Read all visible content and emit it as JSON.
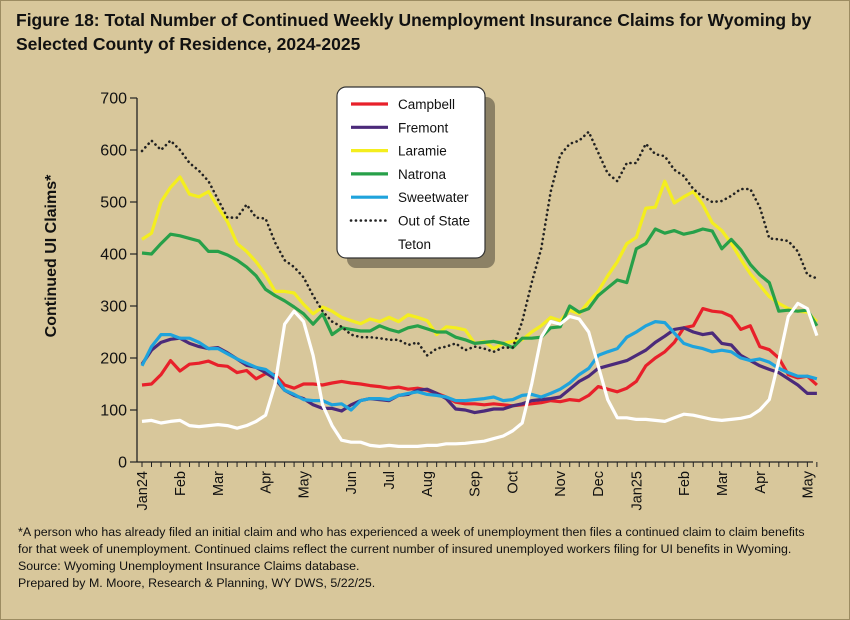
{
  "title": "Figure 18: Total Number of Continued Weekly Unemployment Insurance Claims for Wyoming by Selected County of Residence, 2024-2025",
  "footnotes": {
    "line1": "*A person who has already filed an initial claim and who has experienced a week of unemployment then files a continued claim to claim benefits",
    "line2": "for that week of unemployment. Continued claims reflect the current number of insured unemployed workers filing for UI benefits in Wyoming.",
    "source": "Source: Wyoming Unemployment Insurance Claims database.",
    "prepared": "Prepared by M. Moore, Research & Planning, WY DWS, 5/22/25."
  },
  "chart_data": {
    "type": "line",
    "title": "Figure 18: Total Number of Continued Weekly Unemployment Insurance Claims for Wyoming by Selected County of Residence, 2024-2025",
    "ylabel": "Continued UI Claims*",
    "xlabel": "",
    "ylim": [
      0,
      700
    ],
    "yticks": [
      0,
      100,
      200,
      300,
      400,
      500,
      600,
      700
    ],
    "grid": false,
    "legend_position": "top-center",
    "x_tick_labels": [
      "Jan24",
      "Feb",
      "Mar",
      "Apr",
      "May",
      "Jun",
      "Jul",
      "Aug",
      "Sep",
      "Oct",
      "Nov",
      "Dec",
      "Jan25",
      "Feb",
      "Mar",
      "Apr",
      "May"
    ],
    "x_tick_weeks": [
      0,
      4,
      8,
      13,
      17,
      22,
      26,
      30,
      35,
      39,
      44,
      48,
      52,
      57,
      61,
      65,
      70
    ],
    "x_unit": "week",
    "series": [
      {
        "name": "Campbell",
        "color": "#e8202a",
        "dash": "solid",
        "values": [
          148,
          150,
          168,
          195,
          175,
          188,
          190,
          194,
          186,
          184,
          172,
          176,
          160,
          170,
          168,
          148,
          142,
          150,
          150,
          148,
          152,
          155,
          152,
          150,
          147,
          145,
          142,
          144,
          140,
          142,
          138,
          132,
          125,
          115,
          112,
          112,
          110,
          112,
          110,
          108,
          110,
          112,
          114,
          118,
          116,
          120,
          118,
          128,
          145,
          140,
          135,
          142,
          155,
          185,
          200,
          212,
          230,
          258,
          262,
          295,
          290,
          288,
          280,
          255,
          262,
          222,
          216,
          200,
          168,
          162,
          165,
          148
        ]
      },
      {
        "name": "Fremont",
        "color": "#4b2a7a",
        "dash": "solid",
        "values": [
          188,
          215,
          230,
          236,
          238,
          228,
          222,
          218,
          220,
          210,
          198,
          186,
          182,
          172,
          160,
          138,
          128,
          122,
          110,
          103,
          103,
          98,
          110,
          118,
          122,
          120,
          118,
          128,
          130,
          138,
          140,
          132,
          122,
          102,
          100,
          95,
          98,
          102,
          102,
          108,
          112,
          118,
          120,
          122,
          125,
          140,
          155,
          165,
          180,
          185,
          190,
          195,
          205,
          215,
          230,
          242,
          255,
          258,
          250,
          245,
          248,
          228,
          225,
          205,
          195,
          185,
          178,
          172,
          160,
          148,
          132,
          132
        ]
      },
      {
        "name": "Laramie",
        "color": "#f4ee1e",
        "dash": "solid",
        "values": [
          428,
          440,
          500,
          528,
          548,
          515,
          510,
          520,
          490,
          462,
          420,
          405,
          385,
          360,
          328,
          328,
          325,
          303,
          285,
          298,
          290,
          278,
          272,
          266,
          275,
          270,
          278,
          270,
          283,
          278,
          272,
          245,
          260,
          258,
          254,
          228,
          232,
          218,
          228,
          232,
          235,
          250,
          262,
          278,
          272,
          292,
          285,
          308,
          328,
          358,
          385,
          420,
          432,
          488,
          490,
          540,
          498,
          510,
          520,
          495,
          460,
          445,
          420,
          390,
          362,
          340,
          318,
          305,
          295,
          290,
          288,
          270
        ]
      },
      {
        "name": "Natrona",
        "color": "#27a049",
        "dash": "solid",
        "values": [
          402,
          400,
          420,
          438,
          435,
          430,
          425,
          405,
          405,
          398,
          388,
          375,
          358,
          332,
          320,
          310,
          298,
          285,
          265,
          285,
          245,
          258,
          255,
          252,
          252,
          262,
          255,
          250,
          258,
          262,
          256,
          250,
          250,
          240,
          235,
          228,
          230,
          232,
          228,
          220,
          238,
          238,
          240,
          258,
          260,
          300,
          288,
          295,
          320,
          335,
          350,
          345,
          410,
          420,
          448,
          440,
          445,
          438,
          442,
          448,
          444,
          410,
          428,
          408,
          380,
          360,
          345,
          290,
          292,
          290,
          292,
          262
        ]
      },
      {
        "name": "Sweetwater",
        "color": "#1fa3dc",
        "dash": "solid",
        "values": [
          185,
          222,
          245,
          245,
          238,
          238,
          230,
          218,
          218,
          208,
          198,
          190,
          182,
          178,
          165,
          138,
          130,
          120,
          118,
          118,
          110,
          112,
          100,
          118,
          122,
          122,
          120,
          128,
          132,
          135,
          130,
          128,
          125,
          118,
          118,
          120,
          122,
          125,
          118,
          120,
          128,
          130,
          125,
          132,
          140,
          152,
          168,
          180,
          205,
          212,
          218,
          240,
          250,
          262,
          270,
          268,
          248,
          228,
          222,
          218,
          212,
          215,
          212,
          200,
          195,
          198,
          192,
          180,
          172,
          165,
          165,
          160
        ]
      },
      {
        "name": "Out of State",
        "color": "#222222",
        "dash": "dotted",
        "values": [
          598,
          618,
          600,
          618,
          600,
          575,
          560,
          540,
          505,
          470,
          470,
          495,
          470,
          468,
          422,
          388,
          375,
          355,
          320,
          290,
          270,
          260,
          245,
          240,
          240,
          238,
          235,
          235,
          225,
          230,
          205,
          218,
          222,
          228,
          215,
          222,
          218,
          212,
          220,
          220,
          270,
          345,
          410,
          520,
          590,
          612,
          618,
          635,
          595,
          555,
          540,
          575,
          575,
          612,
          592,
          588,
          562,
          550,
          525,
          510,
          500,
          502,
          512,
          525,
          525,
          490,
          430,
          428,
          425,
          405,
          360,
          353
        ]
      },
      {
        "name": "Teton",
        "color": "#ffffff",
        "dash": "solid",
        "values": [
          78,
          80,
          75,
          78,
          80,
          70,
          68,
          70,
          72,
          70,
          65,
          70,
          78,
          90,
          150,
          265,
          290,
          270,
          205,
          110,
          70,
          42,
          38,
          38,
          32,
          30,
          32,
          30,
          30,
          30,
          32,
          32,
          35,
          35,
          36,
          38,
          40,
          45,
          50,
          60,
          75,
          150,
          240,
          270,
          265,
          280,
          275,
          250,
          185,
          120,
          85,
          85,
          82,
          82,
          80,
          78,
          85,
          92,
          90,
          86,
          82,
          80,
          82,
          84,
          88,
          100,
          120,
          195,
          280,
          305,
          295,
          243
        ]
      }
    ]
  }
}
